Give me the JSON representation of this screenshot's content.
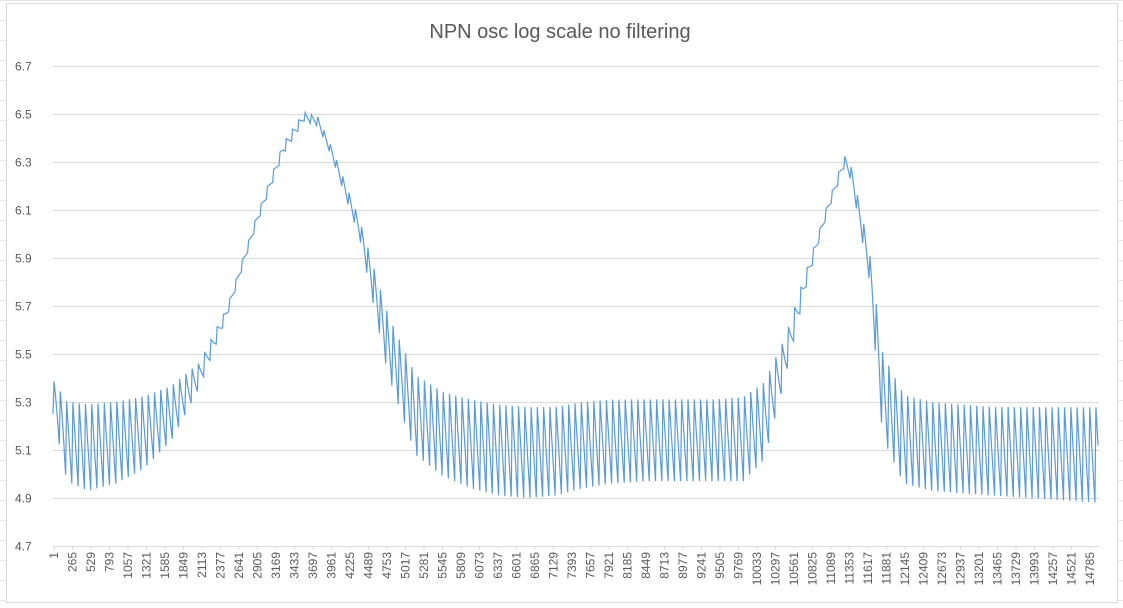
{
  "chart_data": {
    "type": "line",
    "title": "NPN osc log scale no filtering",
    "xlabel": "",
    "ylabel": "",
    "ylim": [
      4.7,
      6.7
    ],
    "yticks": [
      "4.7",
      "4.9",
      "5.1",
      "5.3",
      "5.5",
      "5.7",
      "5.9",
      "6.1",
      "6.3",
      "6.5",
      "6.7"
    ],
    "xlim": [
      1,
      15000
    ],
    "xticks": [
      "1",
      "265",
      "529",
      "793",
      "1057",
      "1321",
      "1585",
      "1849",
      "2113",
      "2377",
      "2641",
      "2905",
      "3169",
      "3433",
      "3697",
      "3961",
      "4225",
      "4489",
      "4753",
      "5017",
      "5281",
      "5545",
      "5809",
      "6073",
      "6337",
      "6601",
      "6865",
      "7129",
      "7393",
      "7657",
      "7921",
      "8185",
      "8449",
      "8713",
      "8977",
      "9241",
      "9505",
      "9769",
      "10033",
      "10297",
      "10561",
      "10825",
      "11089",
      "11353",
      "11617",
      "11881",
      "12145",
      "12409",
      "12673",
      "12937",
      "13201",
      "13465",
      "13729",
      "13993",
      "14257",
      "14521",
      "14785"
    ],
    "grid": true,
    "legend": "none",
    "series_color": "#5b9bd5",
    "oscillation_period": 90,
    "series": [
      {
        "name": "",
        "envelope_x": [
          1,
          200,
          500,
          900,
          1300,
          1700,
          2100,
          2500,
          2900,
          3300,
          3600,
          3800,
          4000,
          4400,
          4800,
          5200,
          5600,
          6000,
          6400,
          6800,
          7200,
          7600,
          8000,
          8500,
          9000,
          9500,
          9900,
          10200,
          10500,
          10800,
          11100,
          11350,
          11450,
          11700,
          11900,
          12200,
          12600,
          13000,
          13500,
          14000,
          14500,
          15000
        ],
        "upper": [
          5.4,
          5.32,
          5.31,
          5.32,
          5.34,
          5.38,
          5.47,
          5.7,
          6.06,
          6.38,
          6.51,
          6.49,
          6.36,
          6.06,
          5.68,
          5.43,
          5.36,
          5.33,
          5.31,
          5.3,
          5.3,
          5.32,
          5.33,
          5.33,
          5.33,
          5.33,
          5.34,
          5.4,
          5.58,
          5.85,
          6.12,
          6.33,
          6.28,
          5.95,
          5.52,
          5.35,
          5.32,
          5.31,
          5.3,
          5.3,
          5.3,
          5.3
        ],
        "lower": [
          5.25,
          4.97,
          4.93,
          4.96,
          5.02,
          5.14,
          5.36,
          5.66,
          6.02,
          6.33,
          6.47,
          6.45,
          6.32,
          5.98,
          5.42,
          5.08,
          4.99,
          4.94,
          4.91,
          4.9,
          4.91,
          4.94,
          4.96,
          4.97,
          4.97,
          4.97,
          4.97,
          5.06,
          5.4,
          5.78,
          6.08,
          6.28,
          6.22,
          5.82,
          5.15,
          4.96,
          4.93,
          4.92,
          4.91,
          4.9,
          4.89,
          4.88
        ]
      }
    ]
  }
}
